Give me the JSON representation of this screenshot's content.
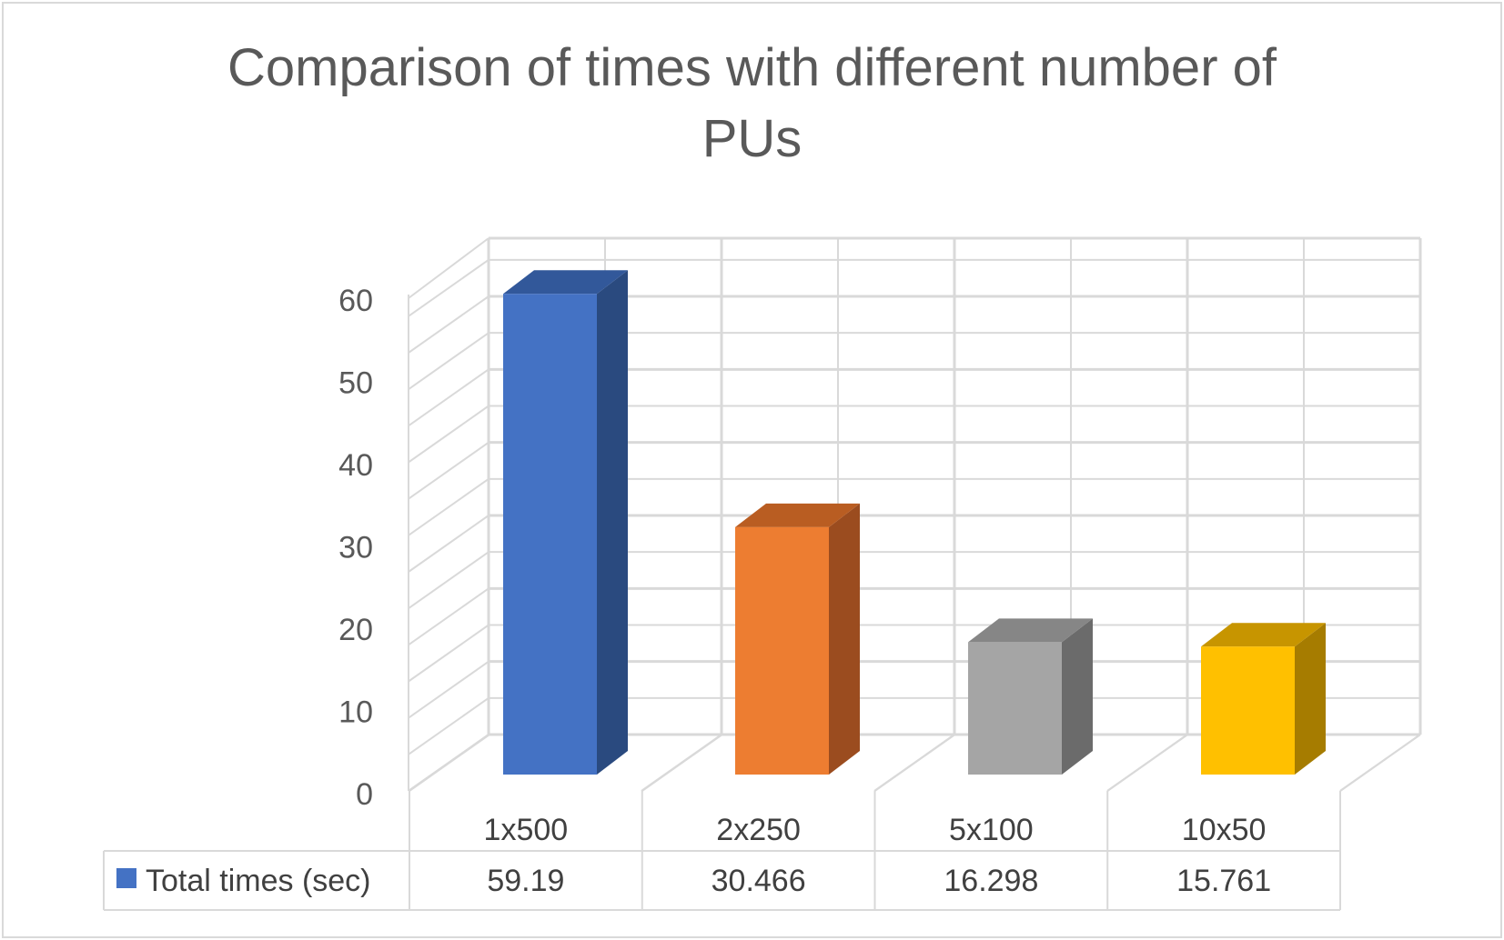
{
  "chart_data": {
    "type": "bar",
    "title": "Comparison of times with different number of PUs",
    "categories": [
      "1x500",
      "2x250",
      "5x100",
      "10x50"
    ],
    "series": [
      {
        "name": "Total times (sec)",
        "values": [
          59.19,
          30.466,
          16.298,
          15.761
        ]
      }
    ],
    "data_table_values": [
      "59.19",
      "30.466",
      "16.298",
      "15.761"
    ],
    "y_ticks": [
      "0",
      "10",
      "20",
      "30",
      "40",
      "50",
      "60"
    ],
    "ylim": [
      0,
      60
    ],
    "grid": true,
    "style": "3d-column",
    "legend": "data-table",
    "colors": {
      "bar_fronts": [
        "#4472C4",
        "#ED7D31",
        "#A5A5A5",
        "#FFC000"
      ],
      "bar_sides": [
        "#2A4A7F",
        "#9B4C1F",
        "#6B6B6B",
        "#A67C00"
      ],
      "bar_tops": [
        "#32589A",
        "#B95D22",
        "#868686",
        "#C79500"
      ],
      "legend_key": "#4472C4",
      "grid": "#d9d9d9",
      "text": "#595959"
    }
  }
}
